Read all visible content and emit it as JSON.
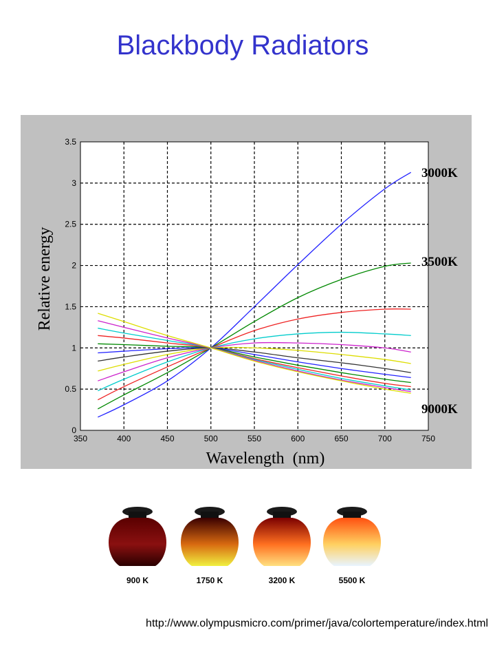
{
  "title": "Blackbody Radiators",
  "source_url": "http://www.olympusmicro.com/primer/java/colortemperature/index.html",
  "chart_data": {
    "type": "line",
    "xlabel": "Wavelength  (nm)",
    "ylabel": "Relative energy",
    "xlim": [
      350,
      750
    ],
    "ylim": [
      0,
      3.5
    ],
    "xticks": [
      "350",
      "400",
      "450",
      "500",
      "550",
      "600",
      "650",
      "700",
      "750"
    ],
    "yticks": [
      "0",
      "0.5",
      "1",
      "1.5",
      "2",
      "2.5",
      "3",
      "3.5"
    ],
    "grid": true,
    "grid_style": "dashed",
    "x": [
      370,
      400,
      450,
      500,
      550,
      600,
      650,
      700,
      730
    ],
    "series": [
      {
        "color": "#2222ff",
        "values": [
          0.16,
          0.31,
          0.6,
          1.0,
          1.5,
          2.01,
          2.5,
          2.93,
          3.13
        ]
      },
      {
        "color": "#008800",
        "values": [
          0.26,
          0.43,
          0.7,
          1.0,
          1.32,
          1.61,
          1.83,
          1.99,
          2.03
        ]
      },
      {
        "color": "#ee2222",
        "values": [
          0.37,
          0.53,
          0.77,
          1.0,
          1.21,
          1.35,
          1.43,
          1.47,
          1.47
        ]
      },
      {
        "color": "#00cccc",
        "values": [
          0.48,
          0.62,
          0.83,
          1.0,
          1.11,
          1.17,
          1.19,
          1.17,
          1.15
        ]
      },
      {
        "color": "#cc22cc",
        "values": [
          0.6,
          0.71,
          0.88,
          1.0,
          1.06,
          1.06,
          1.04,
          1.0,
          0.95
        ]
      },
      {
        "color": "#dddd00",
        "values": [
          0.72,
          0.8,
          0.92,
          1.0,
          1.0,
          0.97,
          0.92,
          0.86,
          0.81
        ]
      },
      {
        "color": "#333333",
        "values": [
          0.84,
          0.89,
          0.96,
          1.0,
          0.95,
          0.88,
          0.82,
          0.75,
          0.7
        ]
      },
      {
        "color": "#2222ff",
        "values": [
          0.94,
          0.96,
          0.99,
          1.0,
          0.92,
          0.83,
          0.75,
          0.68,
          0.64
        ]
      },
      {
        "color": "#008800",
        "values": [
          1.05,
          1.04,
          1.02,
          1.0,
          0.89,
          0.79,
          0.7,
          0.62,
          0.58
        ]
      },
      {
        "color": "#ee2222",
        "values": [
          1.15,
          1.12,
          1.06,
          1.0,
          0.87,
          0.76,
          0.66,
          0.57,
          0.53
        ]
      },
      {
        "color": "#00cccc",
        "values": [
          1.24,
          1.18,
          1.09,
          1.0,
          0.86,
          0.74,
          0.63,
          0.54,
          0.49
        ]
      },
      {
        "color": "#cc22cc",
        "values": [
          1.33,
          1.25,
          1.12,
          1.0,
          0.85,
          0.72,
          0.61,
          0.52,
          0.47
        ]
      },
      {
        "color": "#dddd00",
        "values": [
          1.42,
          1.32,
          1.15,
          1.0,
          0.84,
          0.71,
          0.6,
          0.5,
          0.45
        ]
      }
    ],
    "annotations": [
      "3000K",
      "3500K",
      "9000K"
    ]
  },
  "pots": [
    {
      "label": "900 K",
      "colors": [
        "#5a0000",
        "#8a1010",
        "#2a0000"
      ]
    },
    {
      "label": "1750 K",
      "colors": [
        "#3a0000",
        "#d86a10",
        "#f0f040"
      ]
    },
    {
      "label": "3200 K",
      "colors": [
        "#7a0000",
        "#ff7020",
        "#ffe080"
      ]
    },
    {
      "label": "5500 K",
      "colors": [
        "#ff5010",
        "#ffd060",
        "#e8f4ff"
      ]
    }
  ]
}
